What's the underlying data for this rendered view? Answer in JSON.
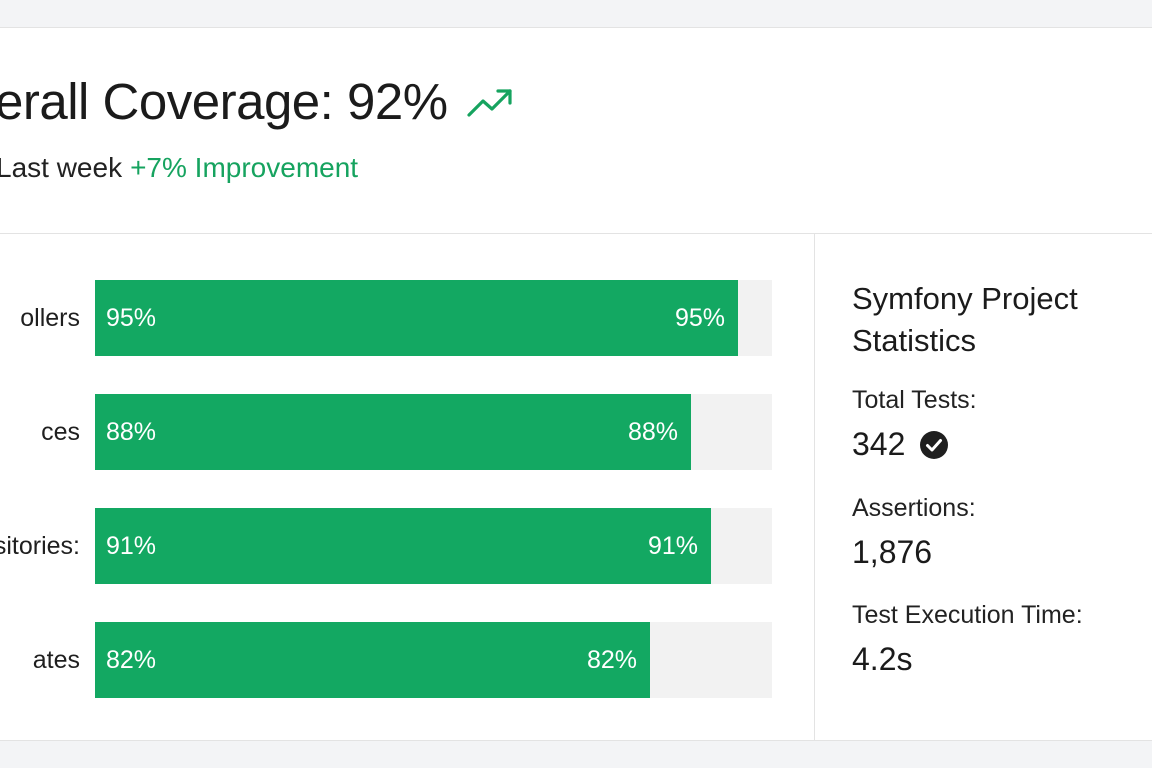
{
  "header": {
    "title": "verall Coverage: 92%",
    "trend_icon": "trending-up-icon",
    "subtitle_prefix": "Last week",
    "subtitle_improvement": "+7% Improvement",
    "accent_color": "#16a35f"
  },
  "coverage_bars": [
    {
      "label": "ollers",
      "percent": 95,
      "value_text": "95%"
    },
    {
      "label": "ces",
      "percent": 88,
      "value_text": "88%"
    },
    {
      "label": "sitories:",
      "percent": 91,
      "value_text": "91%"
    },
    {
      "label": "ates",
      "percent": 82,
      "value_text": "82%"
    }
  ],
  "stats": {
    "title": "Symfony Project Statistics",
    "total_tests_label": "Total Tests:",
    "total_tests_value": "342",
    "total_tests_icon": "check-circle-icon",
    "assertions_label": "Assertions:",
    "assertions_value": "1,876",
    "exec_time_label": "Test Execution Time:",
    "exec_time_value": "4.2s"
  },
  "colors": {
    "bar_fill": "#13a862",
    "bar_track": "#f2f2f2"
  }
}
